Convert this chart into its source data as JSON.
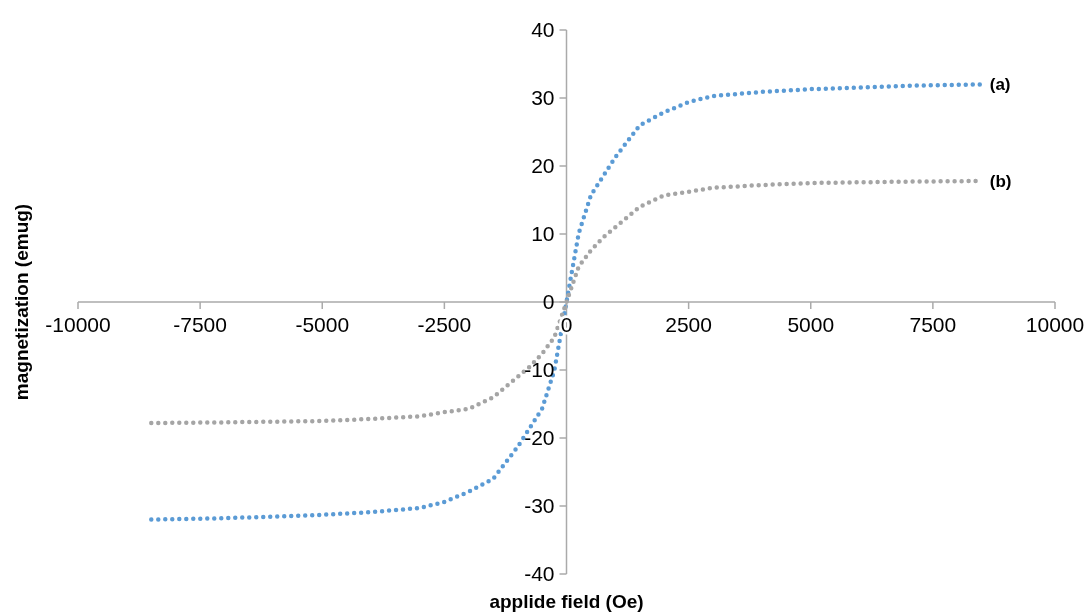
{
  "chart_data": {
    "type": "line",
    "xlabel": "applide field (Oe)",
    "ylabel": "magnetization (emug)",
    "x": [
      -8500,
      -7000,
      -5000,
      -4000,
      -3000,
      -2500,
      -2000,
      -1500,
      -1000,
      -750,
      -500,
      -250,
      0,
      250,
      500,
      750,
      1000,
      1500,
      2000,
      2500,
      3000,
      4000,
      5000,
      7000,
      8500
    ],
    "series": [
      {
        "name": "(a)",
        "color": "#5b9bd5",
        "values": [
          -32,
          -31.8,
          -31.3,
          -30.9,
          -30.3,
          -29.4,
          -27.9,
          -26,
          -21.3,
          -18.5,
          -15.7,
          -10.1,
          0,
          10.1,
          15.7,
          18.5,
          21.3,
          26,
          27.9,
          29.4,
          30.3,
          30.9,
          31.3,
          31.8,
          32
        ]
      },
      {
        "name": "(b)",
        "color": "#a5a5a5",
        "values": [
          -17.8,
          -17.7,
          -17.5,
          -17.2,
          -16.8,
          -16.2,
          -15.7,
          -14,
          -11,
          -9.5,
          -7.6,
          -5.2,
          0,
          5.2,
          7.6,
          9.5,
          11,
          14,
          15.7,
          16.2,
          16.8,
          17.2,
          17.5,
          17.7,
          17.8
        ]
      }
    ],
    "xlim": [
      -10000,
      10000
    ],
    "xticks": [
      -10000,
      -7500,
      -5000,
      -2500,
      0,
      2500,
      5000,
      7500,
      10000
    ],
    "ylim": [
      -40,
      40
    ],
    "yticks": [
      -40,
      -30,
      -20,
      -10,
      0,
      10,
      20,
      30,
      40
    ],
    "grid": false,
    "legend": false,
    "marker": "none",
    "line_style": "dotted"
  }
}
